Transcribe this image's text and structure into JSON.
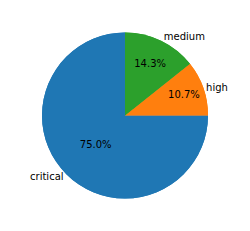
{
  "chart_data": {
    "type": "pie",
    "categories": [
      "critical",
      "high",
      "medium"
    ],
    "values": [
      75.0,
      10.7,
      14.3
    ],
    "value_labels": [
      "75.0%",
      "10.7%",
      "14.3%"
    ],
    "colors": [
      "#1f77b4",
      "#ff7f0e",
      "#2ca02c"
    ],
    "data_labels": true
  }
}
